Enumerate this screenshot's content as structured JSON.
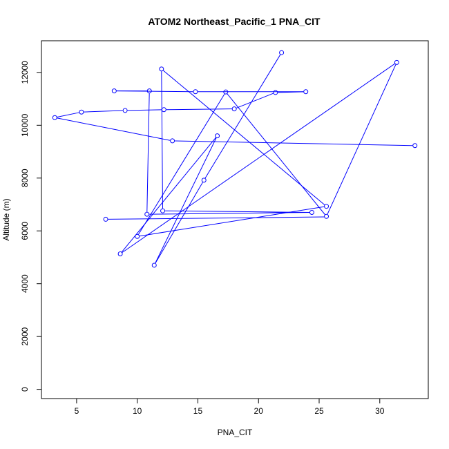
{
  "chart_data": {
    "type": "line",
    "title": "ATOM2 Northeast_Pacific_1 PNA_CIT",
    "xlabel": "PNA_CIT",
    "ylabel": "Altitude (m)",
    "xlim": [
      2.1,
      34.0
    ],
    "ylim": [
      -350,
      13200
    ],
    "x_ticks": [
      5,
      10,
      15,
      20,
      25,
      30
    ],
    "y_ticks": [
      0,
      2000,
      4000,
      6000,
      8000,
      10000,
      12000
    ],
    "grid": false,
    "series_color": "#0000ff",
    "points": [
      {
        "x": 21.9,
        "y": 12750
      },
      {
        "x": 15.5,
        "y": 7920
      },
      {
        "x": 11.4,
        "y": 4700
      },
      {
        "x": 16.6,
        "y": 9600
      },
      {
        "x": 8.6,
        "y": 5130
      },
      {
        "x": 31.4,
        "y": 12380
      },
      {
        "x": 25.6,
        "y": 6550
      },
      {
        "x": 17.3,
        "y": 11260
      },
      {
        "x": 10.0,
        "y": 5790
      },
      {
        "x": 25.6,
        "y": 6930
      },
      {
        "x": 12.0,
        "y": 12130
      },
      {
        "x": 12.1,
        "y": 6760
      },
      {
        "x": 24.4,
        "y": 6700
      },
      {
        "x": 10.8,
        "y": 6630
      },
      {
        "x": 11.0,
        "y": 11300
      },
      {
        "x": 8.1,
        "y": 11300
      },
      {
        "x": 14.8,
        "y": 11270
      },
      {
        "x": 23.9,
        "y": 11270
      },
      {
        "x": 21.4,
        "y": 11240
      },
      {
        "x": 18.0,
        "y": 10620
      },
      {
        "x": 12.2,
        "y": 10590
      },
      {
        "x": 9.0,
        "y": 10560
      },
      {
        "x": 5.4,
        "y": 10500
      },
      {
        "x": 3.2,
        "y": 10290
      },
      {
        "x": 12.9,
        "y": 9410
      },
      {
        "x": 32.9,
        "y": 9230
      }
    ],
    "extra_segments": [
      {
        "from": {
          "x": 7.4,
          "y": 6440
        },
        "to": {
          "x": 25.6,
          "y": 6530
        }
      }
    ]
  }
}
